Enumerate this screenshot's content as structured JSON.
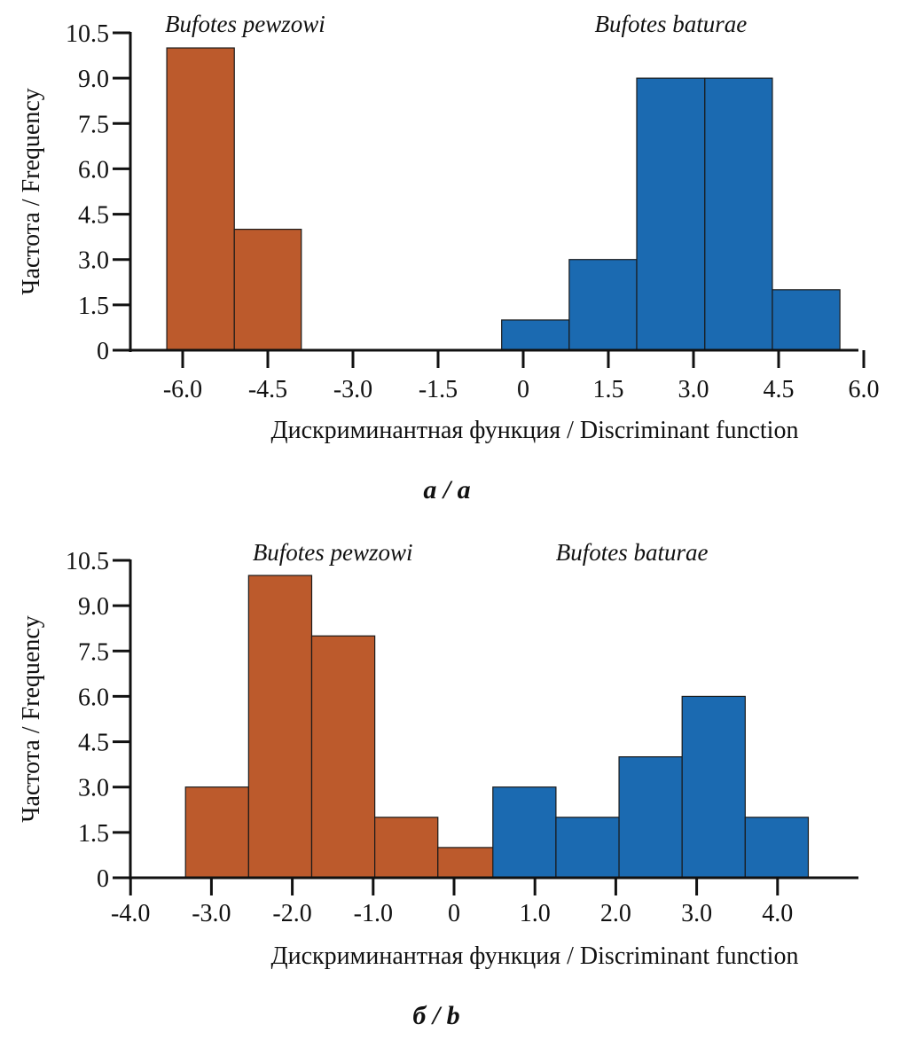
{
  "colors": {
    "pewzowi": "#bc5a2c",
    "baturae": "#1b6ab1",
    "axis": "#111111"
  },
  "chart_data": [
    {
      "type": "bar",
      "subtype": "histogram",
      "panel_label": "a / a",
      "xlabel": "Дискриминантная функция / Discriminant function",
      "ylabel": "Частота / Frequency",
      "xlim": [
        -7.0,
        6.0
      ],
      "ylim": [
        0,
        10.5
      ],
      "xticks": [
        -6.0,
        -4.5,
        -3.0,
        -1.5,
        0,
        1.5,
        3.0,
        4.5,
        6.0
      ],
      "xtick_labels": [
        "-6.0",
        "-4.5",
        "-3.0",
        "-1.5",
        "0",
        "1.5",
        "3.0",
        "4.5",
        "6.0"
      ],
      "yticks": [
        0,
        1.5,
        3.0,
        4.5,
        6.0,
        7.5,
        9.0,
        10.5
      ],
      "ytick_labels": [
        "0",
        "1.5",
        "3.0",
        "4.5",
        "6.0",
        "7.5",
        "9.0",
        "10.5"
      ],
      "grid": false,
      "annotations": [
        {
          "text": "Bufotes pewzowi",
          "x": -4.9,
          "position": "top-left"
        },
        {
          "text": "Bufotes baturae",
          "x": 2.6,
          "position": "top-right"
        }
      ],
      "series": [
        {
          "name": "Bufotes pewzowi",
          "color_key": "pewzowi",
          "bins": [
            {
              "x0": -6.28,
              "x1": -5.09,
              "value": 10
            },
            {
              "x0": -5.09,
              "x1": -3.91,
              "value": 4
            }
          ]
        },
        {
          "name": "Bufotes baturae",
          "color_key": "baturae",
          "bins": [
            {
              "x0": -0.38,
              "x1": 0.81,
              "value": 1
            },
            {
              "x0": 0.81,
              "x1": 2.0,
              "value": 3
            },
            {
              "x0": 2.0,
              "x1": 3.2,
              "value": 9
            },
            {
              "x0": 3.2,
              "x1": 4.39,
              "value": 9
            },
            {
              "x0": 4.39,
              "x1": 5.58,
              "value": 2
            }
          ]
        }
      ]
    },
    {
      "type": "bar",
      "subtype": "histogram",
      "panel_label": "б / b",
      "xlabel": "Дискриминантная функция / Discriminant function",
      "ylabel": "Частота / Frequency",
      "xlim": [
        -4.0,
        5.0
      ],
      "ylim": [
        0,
        10.5
      ],
      "xticks": [
        -4.0,
        -3.0,
        -2.0,
        -1.0,
        0,
        1.0,
        2.0,
        3.0,
        4.0
      ],
      "xtick_labels": [
        "-4.0",
        "-3.0",
        "-2.0",
        "-1.0",
        "0",
        "1.0",
        "2.0",
        "3.0",
        "4.0"
      ],
      "yticks": [
        0,
        1.5,
        3.0,
        4.5,
        6.0,
        7.5,
        9.0,
        10.5
      ],
      "ytick_labels": [
        "0",
        "1.5",
        "3.0",
        "4.5",
        "6.0",
        "7.5",
        "9.0",
        "10.5"
      ],
      "grid": false,
      "annotations": [
        {
          "text": "Bufotes pewzowi",
          "x": -1.5,
          "position": "top-left"
        },
        {
          "text": "Bufotes baturae",
          "x": 2.2,
          "position": "top-right"
        }
      ],
      "series": [
        {
          "name": "Bufotes pewzowi",
          "color_key": "pewzowi",
          "bins": [
            {
              "x0": -3.32,
              "x1": -2.54,
              "value": 3
            },
            {
              "x0": -2.54,
              "x1": -1.76,
              "value": 10
            },
            {
              "x0": -1.76,
              "x1": -0.98,
              "value": 8
            },
            {
              "x0": -0.98,
              "x1": -0.2,
              "value": 2
            },
            {
              "x0": -0.2,
              "x1": 0.58,
              "value": 1
            }
          ]
        },
        {
          "name": "Bufotes baturae",
          "color_key": "baturae",
          "bins": [
            {
              "x0": 0.48,
              "x1": 1.26,
              "value": 3
            },
            {
              "x0": 1.26,
              "x1": 2.04,
              "value": 2
            },
            {
              "x0": 2.04,
              "x1": 2.82,
              "value": 4
            },
            {
              "x0": 2.82,
              "x1": 3.6,
              "value": 6
            },
            {
              "x0": 3.6,
              "x1": 4.38,
              "value": 2
            }
          ]
        }
      ]
    }
  ]
}
